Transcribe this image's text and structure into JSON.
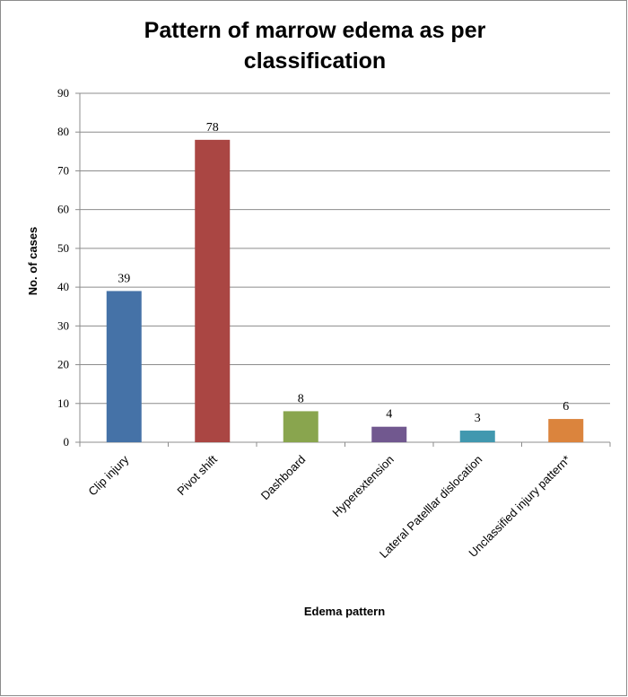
{
  "chart_data": {
    "type": "bar",
    "title": "Pattern of marrow edema as per classification",
    "xlabel": "Edema pattern",
    "ylabel": "No. of cases",
    "ylim": [
      0,
      90
    ],
    "ytick_step": 10,
    "grid": true,
    "legend": "none",
    "categories": [
      "Clip injury",
      "Pivot shift",
      "Dashboard",
      "Hyperextension",
      "Lateral Patelllar dislocation",
      "Unclassified injury pattern*"
    ],
    "values": [
      39,
      78,
      8,
      4,
      3,
      6
    ],
    "colors": [
      "#4572a7",
      "#aa4643",
      "#89a54e",
      "#71588f",
      "#4198af",
      "#db843d"
    ]
  }
}
